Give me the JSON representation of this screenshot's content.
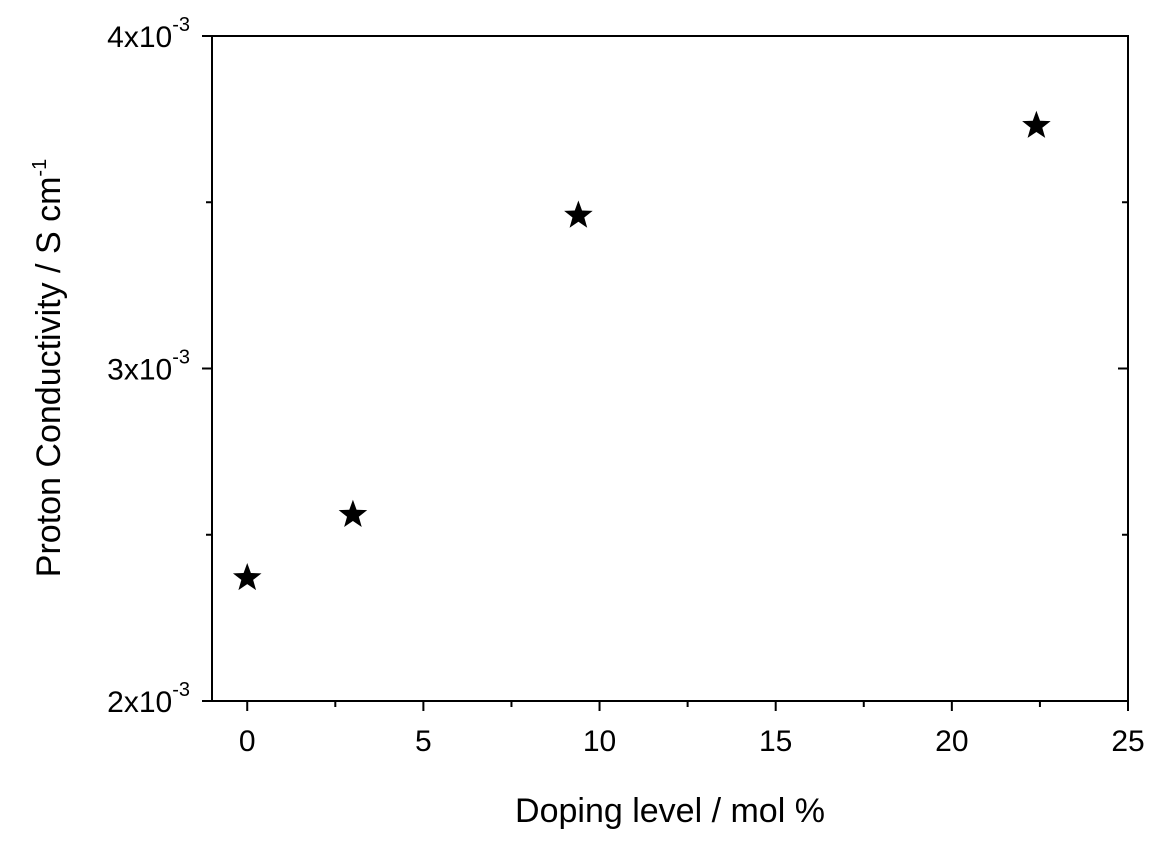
{
  "chart_data": {
    "type": "scatter",
    "xlabel": "Doping level / mol %",
    "ylabel": {
      "base": "Proton Conductivity / S cm",
      "exponent": "-1"
    },
    "xlim": [
      -1,
      25
    ],
    "ylim": [
      0.002,
      0.004
    ],
    "x_ticks": [
      {
        "value": 0,
        "label": "0"
      },
      {
        "value": 5,
        "label": "5"
      },
      {
        "value": 10,
        "label": "10"
      },
      {
        "value": 15,
        "label": "15"
      },
      {
        "value": 20,
        "label": "20"
      },
      {
        "value": 25,
        "label": "25"
      }
    ],
    "x_minor_ticks": [
      2.5,
      7.5,
      12.5,
      17.5,
      22.5
    ],
    "y_ticks": [
      {
        "value": 0.002,
        "mantissa": "2x10",
        "exponent": "-3"
      },
      {
        "value": 0.003,
        "mantissa": "3x10",
        "exponent": "-3"
      },
      {
        "value": 0.004,
        "mantissa": "4x10",
        "exponent": "-3"
      }
    ],
    "y_minor_ticks": [
      0.0025,
      0.0035
    ],
    "points": [
      {
        "x": 0,
        "y": 0.00237
      },
      {
        "x": 3,
        "y": 0.00256
      },
      {
        "x": 9.4,
        "y": 0.00346
      },
      {
        "x": 22.4,
        "y": 0.00373
      }
    ],
    "marker": "star",
    "marker_color": "#000000",
    "grid": false,
    "legend": "none"
  }
}
